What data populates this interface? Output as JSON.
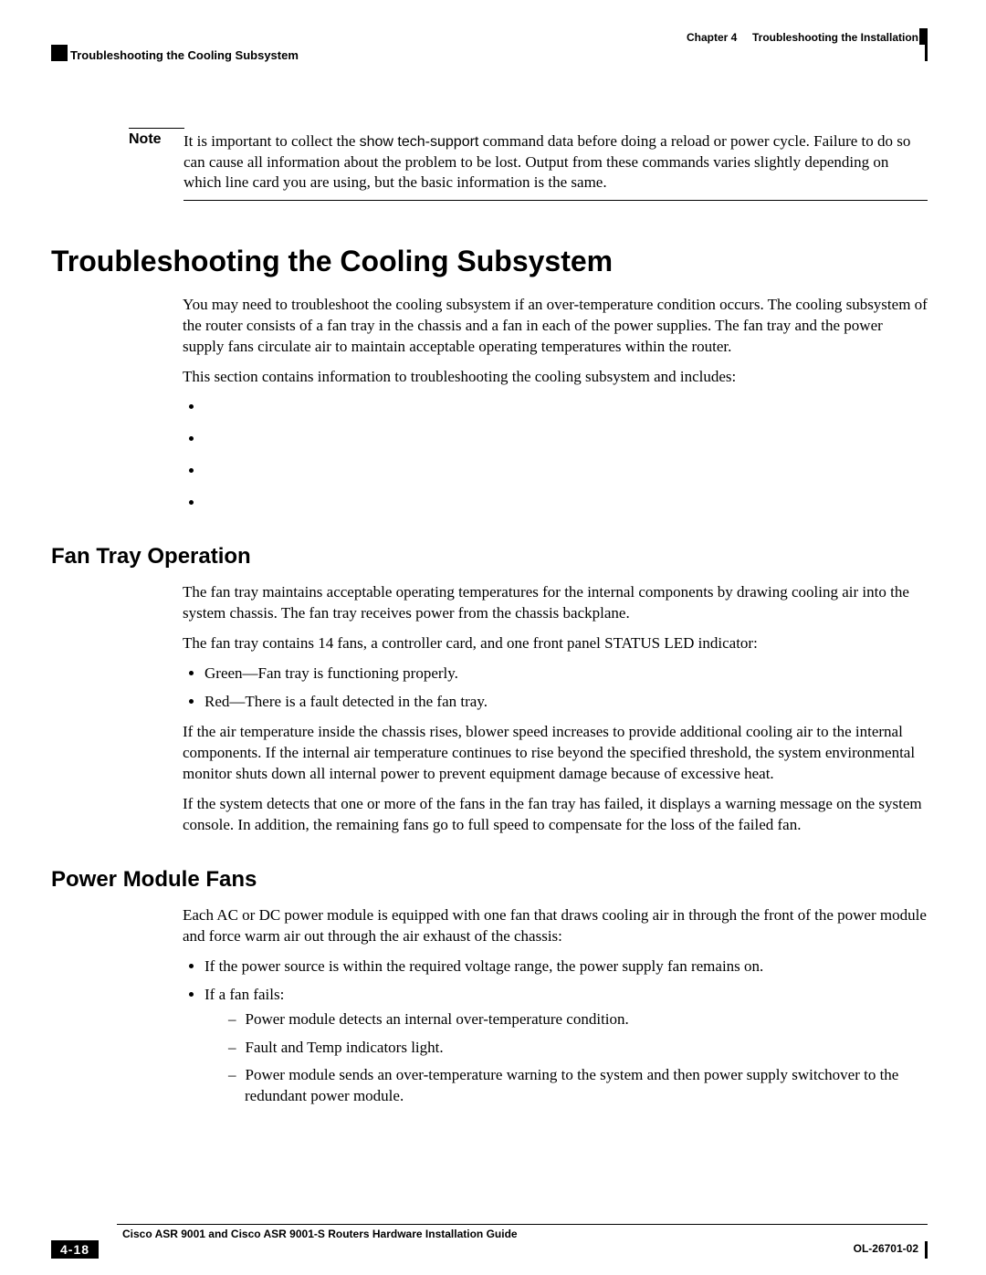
{
  "header": {
    "chapter_label": "Chapter 4     Troubleshooting the Installation",
    "section_label": "Troubleshooting the Cooling Subsystem"
  },
  "note": {
    "label": "Note",
    "text_before": "It is important to collect the ",
    "command": "show tech-support",
    "text_after": " command data before doing a reload or power cycle. Failure to do so can cause all information about the problem to be lost. Output from these commands varies slightly depending on which line card you are using, but the basic information is the same."
  },
  "section_title": "Troubleshooting the Cooling Subsystem",
  "intro_p1": "You may need to troubleshoot the cooling subsystem if an over-temperature condition occurs. The cooling subsystem of the router consists of a fan tray in the chassis and a fan in each of the power supplies. The fan tray and the power supply fans circulate air to maintain acceptable operating temperatures within the router.",
  "intro_p2": "This section contains information to troubleshooting the cooling subsystem and includes:",
  "fan_tray": {
    "title": "Fan Tray Operation",
    "p1": "The fan tray maintains acceptable operating temperatures for the internal components by drawing cooling air into the system chassis. The fan tray receives power from the chassis backplane.",
    "p2": "The fan tray contains 14 fans, a controller card, and one front panel STATUS LED indicator:",
    "led_green": "Green—Fan tray is functioning properly.",
    "led_red": "Red—There is a fault detected in the fan tray.",
    "p3": "If the air temperature inside the chassis rises, blower speed increases to provide additional cooling air to the internal components. If the internal air temperature continues to rise beyond the specified threshold, the system environmental monitor shuts down all internal power to prevent equipment damage because of excessive heat.",
    "p4": "If the system detects that one or more of the fans in the fan tray has failed, it displays a warning message on the system console. In addition, the remaining fans go to full speed to compensate for the loss of the failed fan."
  },
  "power_fans": {
    "title": "Power Module Fans",
    "p1": "Each AC or DC power module is equipped with one fan that draws cooling air in through the front of the power module and force warm air out through the air exhaust of the chassis:",
    "b1": "If the power source is within the required voltage range, the power supply fan remains on.",
    "b2": "If a fan fails:",
    "d1": "Power module detects an internal over-temperature condition.",
    "d2": "Fault and Temp indicators light.",
    "d3": "Power module sends an over-temperature warning to the system and then power supply switchover to the redundant power module."
  },
  "footer": {
    "guide_title": "Cisco ASR 9001 and Cisco ASR 9001-S Routers Hardware Installation Guide",
    "doc_number": "OL-26701-02",
    "page_number": "4-18"
  }
}
